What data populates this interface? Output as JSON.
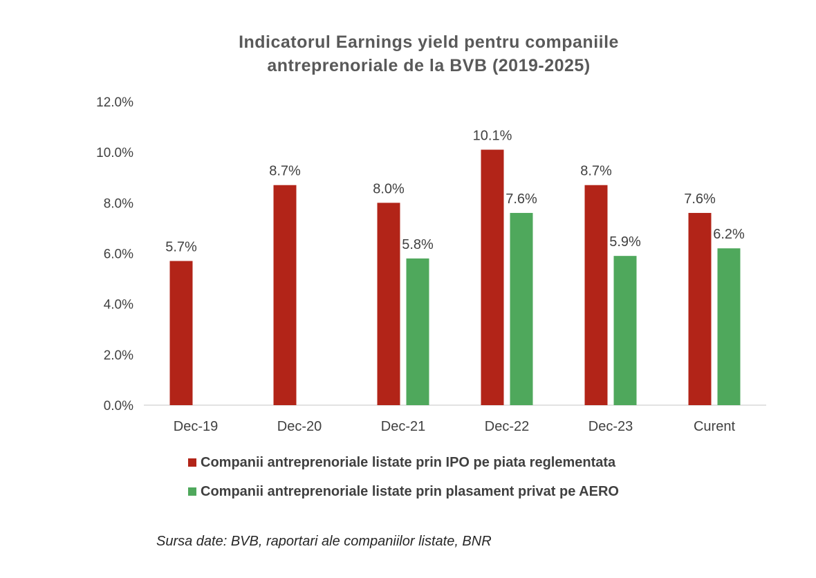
{
  "chart_data": {
    "type": "bar",
    "title_lines": [
      "Indicatorul Earnings yield pentru companiile",
      "antreprenoriale de la BVB (2019-2025)"
    ],
    "categories": [
      "Dec-19",
      "Dec-20",
      "Dec-21",
      "Dec-22",
      "Dec-23",
      "Curent"
    ],
    "series": [
      {
        "name": "Companii antreprenoriale listate prin IPO pe piata reglementata",
        "color": "#b22418",
        "values": [
          5.7,
          8.7,
          8.0,
          10.1,
          8.7,
          7.6
        ],
        "labels": [
          "5.7%",
          "8.7%",
          "8.0%",
          "10.1%",
          "8.7%",
          "7.6%"
        ]
      },
      {
        "name": "Companii antreprenoriale listate prin plasament privat pe AERO",
        "color": "#4fa85c",
        "values": [
          null,
          null,
          5.8,
          7.6,
          5.9,
          6.2
        ],
        "labels": [
          null,
          null,
          "5.8%",
          "7.6%",
          "5.9%",
          "6.2%"
        ]
      }
    ],
    "ylim": [
      0,
      12
    ],
    "yticks": [
      "0.0%",
      "2.0%",
      "4.0%",
      "6.0%",
      "8.0%",
      "10.0%",
      "12.0%"
    ],
    "grid": false,
    "legend_position": "bottom"
  },
  "source_note": "Sursa date: BVB, raportari ale companiilor listate, BNR"
}
